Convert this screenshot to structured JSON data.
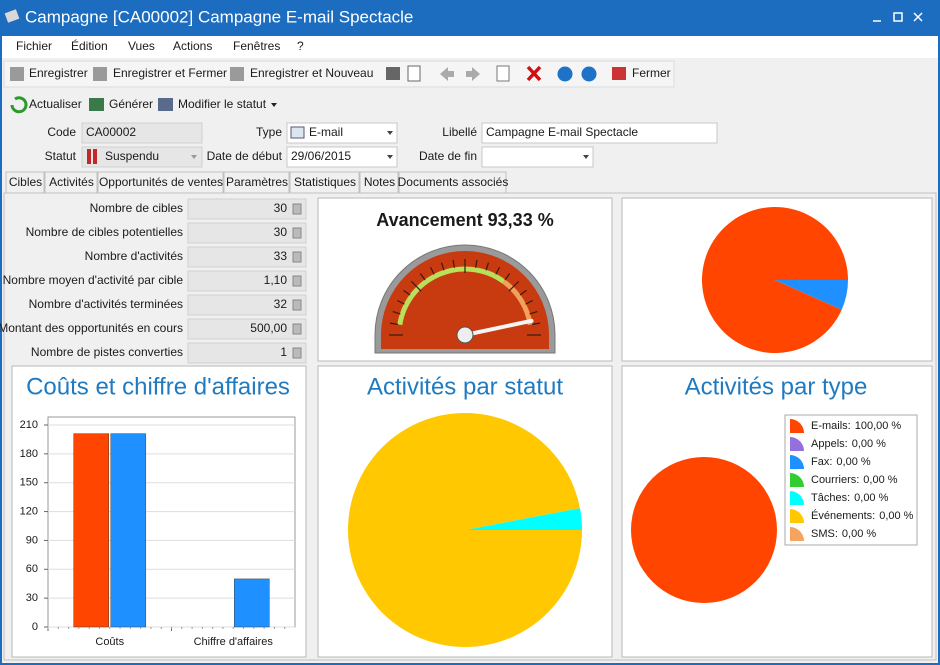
{
  "window": {
    "title": "Campagne [CA00002] Campagne E-mail Spectacle"
  },
  "menu": [
    "Fichier",
    "Édition",
    "Vues",
    "Actions",
    "Fenêtres",
    "?"
  ],
  "toolbar": [
    "Enregistrer",
    "Enregistrer et Fermer",
    "Enregistrer et Nouveau",
    "Fermer"
  ],
  "actions": [
    "Actualiser",
    "Générer",
    "Modifier le statut"
  ],
  "form": {
    "code": {
      "label": "Code",
      "value": "CA00002"
    },
    "type": {
      "label": "Type",
      "value": "E-mail"
    },
    "libelle": {
      "label": "Libellé",
      "value": "Campagne E-mail Spectacle"
    },
    "statut": {
      "label": "Statut",
      "value": "Suspendu"
    },
    "date_debut": {
      "label": "Date de début",
      "value": "29/06/2015"
    },
    "date_fin": {
      "label": "Date de fin"
    }
  },
  "tabs": [
    "Cibles",
    "Activités",
    "Opportunités de ventes",
    "Paramètres",
    "Statistiques",
    "Notes",
    "Documents associés"
  ],
  "statistics": {
    "rows": [
      [
        "Nombre de cibles",
        "30"
      ],
      [
        "Nombre de cibles potentielles",
        "30"
      ],
      [
        "Nombre d'activités",
        "33"
      ],
      [
        "Nombre moyen d'activité par cible",
        "1,10"
      ],
      [
        "Nombre d'activités terminées",
        "32"
      ],
      [
        "Montant des opportunités en cours",
        "500,00"
      ],
      [
        "Nombre de pistes converties",
        "1"
      ]
    ]
  },
  "chart_data": [
    {
      "type": "gauge",
      "title": "Avancement 93,33 %",
      "value": 93.33,
      "ylim": [
        0,
        100
      ]
    },
    {
      "type": "pie",
      "values": [
        93.33,
        6.67
      ],
      "colors": [
        "#ff4500",
        "#1e90ff"
      ]
    },
    {
      "type": "bar",
      "title": "Coûts et chiffre d'affaires",
      "categories": [
        "Coûts",
        "Chiffre d'affaires"
      ],
      "series": [
        {
          "color": "#ff4500",
          "values": [
            201,
            0
          ]
        },
        {
          "color": "#1e90ff",
          "values": [
            201,
            50
          ]
        }
      ],
      "ylim": [
        0,
        210
      ],
      "yticks": [
        0,
        30,
        60,
        90,
        120,
        150,
        180,
        210
      ],
      "grid": true
    },
    {
      "type": "pie",
      "title": "Activités par statut",
      "values": [
        3,
        97
      ],
      "colors": [
        "#00ffff",
        "#ffc800"
      ]
    },
    {
      "type": "pie",
      "title": "Activités par type",
      "categories": [
        "E-mails:",
        "Appels:",
        "Fax:",
        "Courriers:",
        "Tâches:",
        "Événements:",
        "SMS:"
      ],
      "values": [
        100,
        0,
        0,
        0,
        0,
        0,
        0
      ],
      "value_labels": [
        "100,00 %",
        "0,00 %",
        "0,00 %",
        "0,00 %",
        "0,00 %",
        "0,00 %",
        "0,00 %"
      ],
      "colors": [
        "#ff4500",
        "#9370db",
        "#1e90ff",
        "#32cd32",
        "#00ffff",
        "#ffc800",
        "#f4a460"
      ],
      "legend": "right"
    }
  ]
}
